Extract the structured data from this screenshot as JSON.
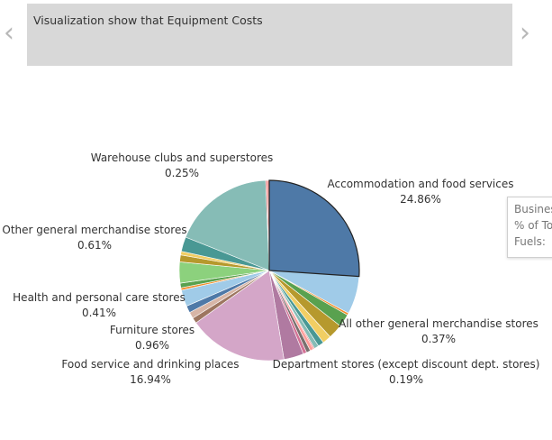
{
  "caption": "Visualization show that Equipment Costs",
  "nav": {
    "prev_icon": "chevron-left-icon",
    "next_icon": "chevron-right-icon"
  },
  "tooltip": {
    "lines": [
      "Busines",
      "% of To",
      "Fuels:"
    ]
  },
  "chart_data": {
    "type": "pie",
    "title": "",
    "slices": [
      {
        "label": "Accommodation and food services",
        "value": 24.86,
        "color": "#4e79a7",
        "highlight": true
      },
      {
        "label": "",
        "value": 6.5,
        "color": "#a0cbe8"
      },
      {
        "label": "All other general merchandise stores",
        "value": 0.37,
        "color": "#f28e2b"
      },
      {
        "label": "",
        "value": 2.2,
        "color": "#59a14f"
      },
      {
        "label": "",
        "value": 2.5,
        "color": "#b6992d"
      },
      {
        "label": "",
        "value": 1.5,
        "color": "#f1ce63"
      },
      {
        "label": "",
        "value": 1.0,
        "color": "#499894"
      },
      {
        "label": "",
        "value": 0.8,
        "color": "#86bcb6"
      },
      {
        "label": "Department stores (except discount dept. stores)",
        "value": 0.19,
        "color": "#e15759"
      },
      {
        "label": "",
        "value": 0.6,
        "color": "#ff9d9a"
      },
      {
        "label": "",
        "value": 0.7,
        "color": "#79706e"
      },
      {
        "label": "",
        "value": 0.6,
        "color": "#d37295"
      },
      {
        "label": "",
        "value": 3.4,
        "color": "#b07aa1"
      },
      {
        "label": "Food service and drinking places",
        "value": 16.94,
        "color": "#d4a6c8"
      },
      {
        "label": "Furniture stores",
        "value": 0.96,
        "color": "#9d7660"
      },
      {
        "label": "",
        "value": 1.1,
        "color": "#d7b5a6"
      },
      {
        "label": "",
        "value": 1.2,
        "color": "#4e79a7"
      },
      {
        "label": "",
        "value": 2.8,
        "color": "#a0cbe8"
      },
      {
        "label": "Health and personal care stores",
        "value": 0.41,
        "color": "#f28e2b"
      },
      {
        "label": "",
        "value": 0.8,
        "color": "#59a14f"
      },
      {
        "label": "",
        "value": 3.6,
        "color": "#8cd17d"
      },
      {
        "label": "",
        "value": 1.2,
        "color": "#b6992d"
      },
      {
        "label": "Other general merchandise stores",
        "value": 0.61,
        "color": "#f1ce63"
      },
      {
        "label": "",
        "value": 2.5,
        "color": "#499894"
      },
      {
        "label": "",
        "value": 17.5,
        "color": "#86bcb6"
      },
      {
        "label": "Warehouse clubs and superstores",
        "value": 0.25,
        "color": "#e15759"
      },
      {
        "label": "",
        "value": 0.35,
        "color": "#ff9d9a"
      }
    ],
    "labels": [
      {
        "name": "Accommodation and food services",
        "percent": "24.86%"
      },
      {
        "name": "All other general merchandise stores",
        "percent": "0.37%"
      },
      {
        "name": "Department stores (except discount dept. stores)",
        "percent": "0.19%"
      },
      {
        "name": "Food service and drinking places",
        "percent": "16.94%"
      },
      {
        "name": "Furniture stores",
        "percent": "0.96%"
      },
      {
        "name": "Health and personal care stores",
        "percent": "0.41%"
      },
      {
        "name": "Other general merchandise stores",
        "percent": "0.61%"
      },
      {
        "name": "Warehouse clubs and superstores",
        "percent": "0.25%"
      }
    ]
  }
}
